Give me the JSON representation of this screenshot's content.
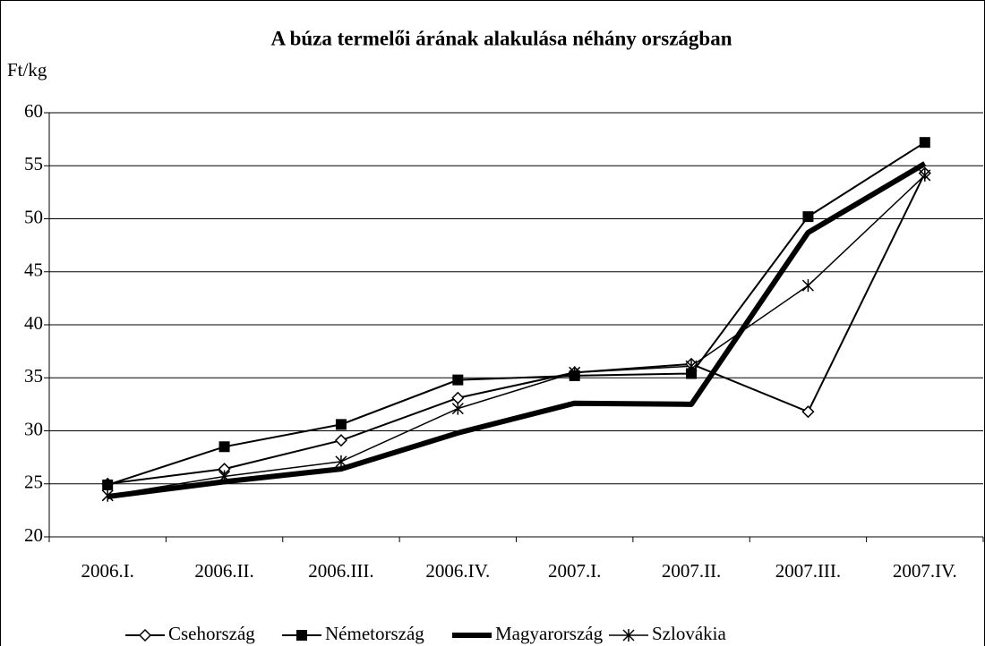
{
  "chart_data": {
    "type": "line",
    "title": "A búza termelői árának alakulása néhány országban",
    "y_label": "Ft/kg",
    "categories": [
      "2006.I.",
      "2006.II.",
      "2006.III.",
      "2006.IV.",
      "2007.I.",
      "2007.II.",
      "2007.III.",
      "2007.IV."
    ],
    "series": [
      {
        "name": "Csehország",
        "color": "#000000",
        "marker": "diamond",
        "line_width": 2,
        "values": [
          25.0,
          26.4,
          29.1,
          33.1,
          35.5,
          36.3,
          31.8,
          54.3
        ]
      },
      {
        "name": "Németország",
        "color": "#000000",
        "marker": "square",
        "line_width": 2,
        "values": [
          24.9,
          28.5,
          30.6,
          34.8,
          35.2,
          35.4,
          50.2,
          57.2
        ]
      },
      {
        "name": "Magyarország",
        "color": "#000000",
        "marker": "none",
        "line_width": 6,
        "values": [
          23.8,
          25.2,
          26.4,
          29.8,
          32.6,
          32.5,
          48.7,
          55.2
        ]
      },
      {
        "name": "Szlovákia",
        "color": "#000000",
        "marker": "star",
        "line_width": 1.5,
        "values": [
          23.9,
          25.7,
          27.1,
          32.1,
          35.5,
          36.1,
          43.7,
          54.1
        ]
      }
    ],
    "ylim": [
      20,
      60
    ],
    "yticks": [
      20,
      25,
      30,
      35,
      40,
      45,
      50,
      55,
      60
    ],
    "grid": true,
    "legend": "bottom"
  }
}
